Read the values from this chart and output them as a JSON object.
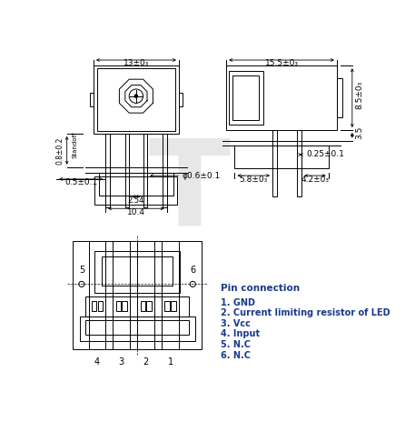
{
  "line_color": "#000000",
  "dim_color": "#000000",
  "bg_color": "#ffffff",
  "title_pin": "Pin connection",
  "pin_labels": [
    "1. GND",
    "2. Current limiting resistor of LED",
    "3. Vcc",
    "4. Input",
    "5. N.C",
    "6. N.C"
  ],
  "dim_font_size": 6.5,
  "pin_title_font_size": 7.5,
  "pin_label_font_size": 7
}
